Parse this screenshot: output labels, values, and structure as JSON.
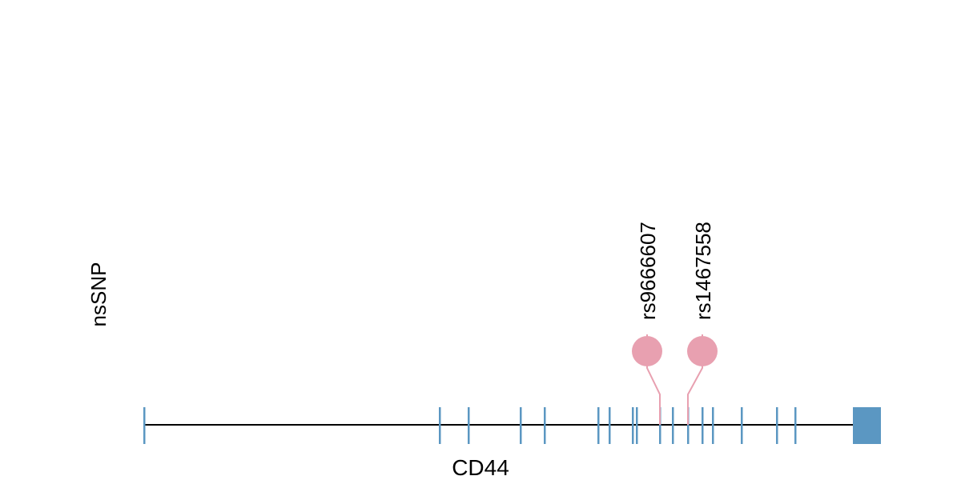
{
  "track_label": "nsSNP",
  "gene": {
    "name": "CD44",
    "start": 0,
    "end": 921,
    "color": "#5b97c2",
    "line_color": "#000000",
    "exons": [
      {
        "start": 0,
        "end": 2
      },
      {
        "start": 369,
        "end": 371
      },
      {
        "start": 405,
        "end": 407
      },
      {
        "start": 470,
        "end": 472
      },
      {
        "start": 500,
        "end": 502
      },
      {
        "start": 567,
        "end": 569
      },
      {
        "start": 581,
        "end": 583
      },
      {
        "start": 610,
        "end": 612
      },
      {
        "start": 615,
        "end": 617
      },
      {
        "start": 644,
        "end": 646
      },
      {
        "start": 660,
        "end": 662
      },
      {
        "start": 679,
        "end": 681
      },
      {
        "start": 697,
        "end": 699
      },
      {
        "start": 710,
        "end": 712
      },
      {
        "start": 746,
        "end": 748
      },
      {
        "start": 790,
        "end": 792
      },
      {
        "start": 813,
        "end": 815
      },
      {
        "start": 886,
        "end": 921
      }
    ]
  },
  "snps": [
    {
      "id": "rs9666607",
      "position": 645,
      "color": "#e8a0b0"
    },
    {
      "id": "rs1467558",
      "position": 680,
      "color": "#e8a0b0"
    }
  ]
}
